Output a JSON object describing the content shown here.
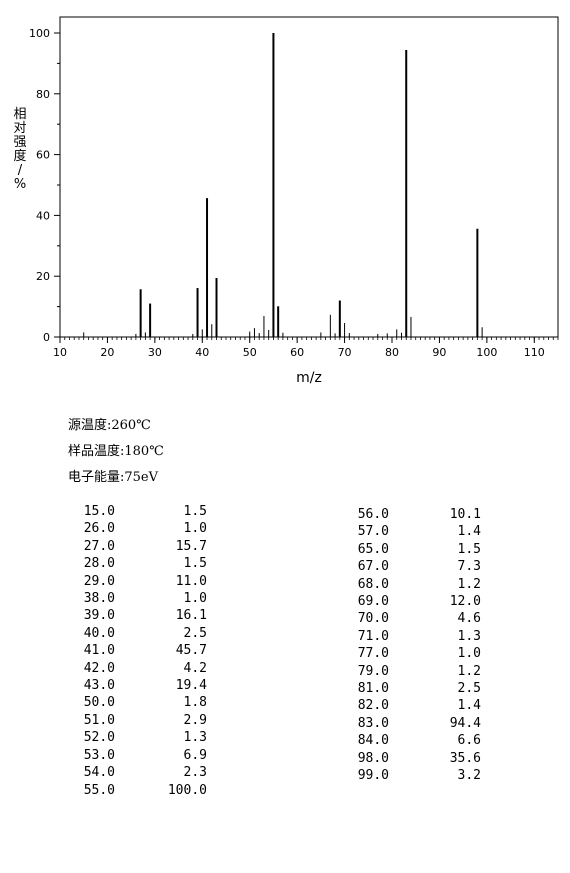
{
  "chart_data": {
    "type": "bar",
    "title": "",
    "xlabel": "m/z",
    "ylabel": "相对强度/%",
    "xlim": [
      10,
      115
    ],
    "ylim": [
      0,
      105
    ],
    "xticks": [
      10,
      20,
      30,
      40,
      50,
      60,
      70,
      80,
      90,
      100,
      110
    ],
    "yticks": [
      0,
      20,
      40,
      60,
      80,
      100
    ],
    "grid": false,
    "peaks": [
      {
        "mz": 15,
        "intensity": 1.5
      },
      {
        "mz": 26,
        "intensity": 1.0
      },
      {
        "mz": 27,
        "intensity": 15.7
      },
      {
        "mz": 28,
        "intensity": 1.5
      },
      {
        "mz": 29,
        "intensity": 11.0
      },
      {
        "mz": 38,
        "intensity": 1.0
      },
      {
        "mz": 39,
        "intensity": 16.1
      },
      {
        "mz": 40,
        "intensity": 2.5
      },
      {
        "mz": 41,
        "intensity": 45.7
      },
      {
        "mz": 42,
        "intensity": 4.2
      },
      {
        "mz": 43,
        "intensity": 19.4
      },
      {
        "mz": 50,
        "intensity": 1.8
      },
      {
        "mz": 51,
        "intensity": 2.9
      },
      {
        "mz": 52,
        "intensity": 1.3
      },
      {
        "mz": 53,
        "intensity": 6.9
      },
      {
        "mz": 54,
        "intensity": 2.3
      },
      {
        "mz": 55,
        "intensity": 100.0
      },
      {
        "mz": 56,
        "intensity": 10.1
      },
      {
        "mz": 57,
        "intensity": 1.4
      },
      {
        "mz": 65,
        "intensity": 1.5
      },
      {
        "mz": 67,
        "intensity": 7.3
      },
      {
        "mz": 68,
        "intensity": 1.2
      },
      {
        "mz": 69,
        "intensity": 12.0
      },
      {
        "mz": 70,
        "intensity": 4.6
      },
      {
        "mz": 71,
        "intensity": 1.3
      },
      {
        "mz": 77,
        "intensity": 1.0
      },
      {
        "mz": 79,
        "intensity": 1.2
      },
      {
        "mz": 81,
        "intensity": 2.5
      },
      {
        "mz": 82,
        "intensity": 1.4
      },
      {
        "mz": 83,
        "intensity": 94.4
      },
      {
        "mz": 84,
        "intensity": 6.6
      },
      {
        "mz": 98,
        "intensity": 35.6
      },
      {
        "mz": 99,
        "intensity": 3.2
      }
    ]
  },
  "conditions": {
    "source_temp": "源温度:260℃",
    "sample_temp": "样品温度:180℃",
    "electron_energy": "电子能量:75eV"
  },
  "peak_table": {
    "left": [
      {
        "mz": "15.0",
        "abundance": "1.5"
      },
      {
        "mz": "26.0",
        "abundance": "1.0"
      },
      {
        "mz": "27.0",
        "abundance": "15.7"
      },
      {
        "mz": "28.0",
        "abundance": "1.5"
      },
      {
        "mz": "29.0",
        "abundance": "11.0"
      },
      {
        "mz": "38.0",
        "abundance": "1.0"
      },
      {
        "mz": "39.0",
        "abundance": "16.1"
      },
      {
        "mz": "40.0",
        "abundance": "2.5"
      },
      {
        "mz": "41.0",
        "abundance": "45.7"
      },
      {
        "mz": "42.0",
        "abundance": "4.2"
      },
      {
        "mz": "43.0",
        "abundance": "19.4"
      },
      {
        "mz": "50.0",
        "abundance": "1.8"
      },
      {
        "mz": "51.0",
        "abundance": "2.9"
      },
      {
        "mz": "52.0",
        "abundance": "1.3"
      },
      {
        "mz": "53.0",
        "abundance": "6.9"
      },
      {
        "mz": "54.0",
        "abundance": "2.3"
      },
      {
        "mz": "55.0",
        "abundance": "100.0"
      }
    ],
    "right": [
      {
        "mz": "56.0",
        "abundance": "10.1"
      },
      {
        "mz": "57.0",
        "abundance": "1.4"
      },
      {
        "mz": "65.0",
        "abundance": "1.5"
      },
      {
        "mz": "67.0",
        "abundance": "7.3"
      },
      {
        "mz": "68.0",
        "abundance": "1.2"
      },
      {
        "mz": "69.0",
        "abundance": "12.0"
      },
      {
        "mz": "70.0",
        "abundance": "4.6"
      },
      {
        "mz": "71.0",
        "abundance": "1.3"
      },
      {
        "mz": "77.0",
        "abundance": "1.0"
      },
      {
        "mz": "79.0",
        "abundance": "1.2"
      },
      {
        "mz": "81.0",
        "abundance": "2.5"
      },
      {
        "mz": "82.0",
        "abundance": "1.4"
      },
      {
        "mz": "83.0",
        "abundance": "94.4"
      },
      {
        "mz": "84.0",
        "abundance": "6.6"
      },
      {
        "mz": "98.0",
        "abundance": "35.6"
      },
      {
        "mz": "99.0",
        "abundance": "3.2"
      }
    ]
  }
}
